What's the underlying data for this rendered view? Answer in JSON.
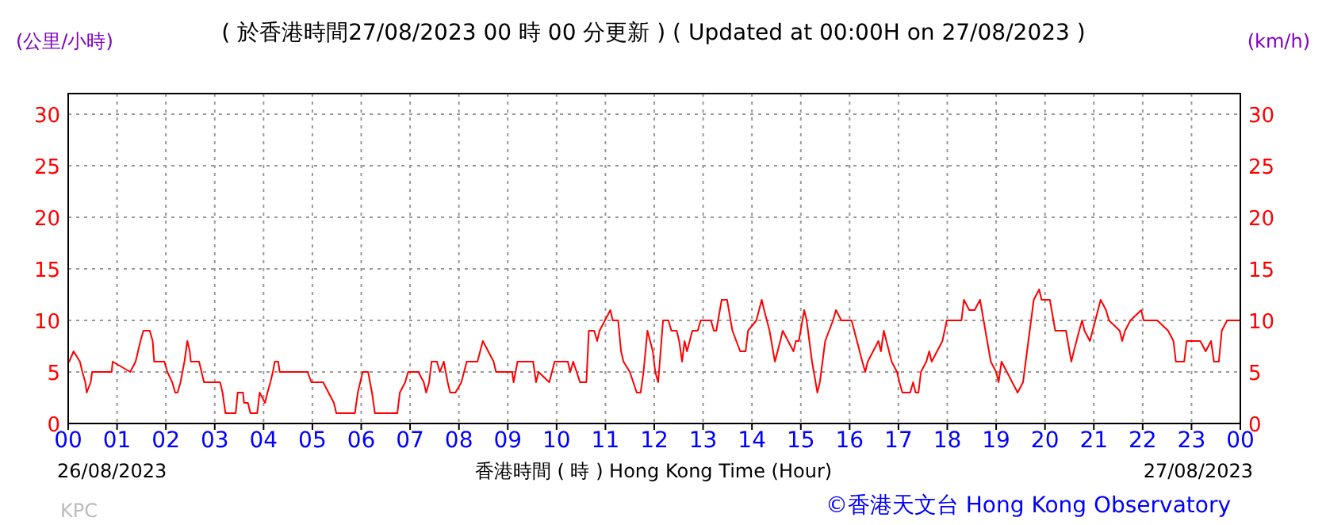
{
  "chart_data": {
    "type": "line",
    "title": "( 於香港時間27/08/2023 00 時 00 分更新 ) ( Updated at 00:00H on 27/08/2023 )",
    "ylabel": "(公里/小時)",
    "y2label": "(km/h)",
    "xlabel": "香港時間 ( 時 ) Hong Kong Time (Hour)",
    "annotations": [
      "26/08/2023",
      "27/08/2023",
      "KPC",
      "©香港天文台 Hong Kong Observatory"
    ],
    "xlim": [
      0,
      24
    ],
    "xticks": [
      {
        "value": 0,
        "label": "00"
      },
      {
        "value": 1,
        "label": "01"
      },
      {
        "value": 2,
        "label": "02"
      },
      {
        "value": 3,
        "label": "03"
      },
      {
        "value": 4,
        "label": "04"
      },
      {
        "value": 5,
        "label": "05"
      },
      {
        "value": 6,
        "label": "06"
      },
      {
        "value": 7,
        "label": "07"
      },
      {
        "value": 8,
        "label": "08"
      },
      {
        "value": 9,
        "label": "09"
      },
      {
        "value": 10,
        "label": "10"
      },
      {
        "value": 11,
        "label": "11"
      },
      {
        "value": 12,
        "label": "12"
      },
      {
        "value": 13,
        "label": "13"
      },
      {
        "value": 14,
        "label": "14"
      },
      {
        "value": 15,
        "label": "15"
      },
      {
        "value": 16,
        "label": "16"
      },
      {
        "value": 17,
        "label": "17"
      },
      {
        "value": 18,
        "label": "18"
      },
      {
        "value": 19,
        "label": "19"
      },
      {
        "value": 20,
        "label": "20"
      },
      {
        "value": 21,
        "label": "21"
      },
      {
        "value": 22,
        "label": "22"
      },
      {
        "value": 23,
        "label": "23"
      },
      {
        "value": 24,
        "label": "00"
      }
    ],
    "ylim": [
      0,
      32
    ],
    "yticks": [
      0,
      5,
      10,
      15,
      20,
      25,
      30
    ],
    "y2lim": [
      0,
      32
    ],
    "y2ticks": [
      0,
      5,
      10,
      15,
      20,
      25,
      30
    ],
    "grid": true,
    "series": [
      {
        "color": "#ff0000",
        "x": [
          0,
          0.02,
          0.11,
          0.24,
          0.29,
          0.35,
          0.38,
          0.46,
          0.49,
          0.89,
          0.91,
          1.27,
          1.38,
          1.48,
          1.54,
          1.67,
          1.73,
          1.76,
          1.97,
          2.03,
          2.13,
          2.19,
          2.24,
          2.3,
          2.38,
          2.44,
          2.49,
          2.51,
          2.68,
          2.73,
          2.78,
          3.11,
          3.16,
          3.22,
          3.43,
          3.47,
          3.58,
          3.6,
          3.68,
          3.73,
          3.87,
          3.92,
          4.03,
          4.08,
          4.14,
          4.19,
          4.23,
          4.3,
          4.33,
          4.84,
          4.9,
          4.98,
          5.22,
          5.33,
          5.44,
          5.49,
          5.87,
          5.93,
          5.98,
          6.03,
          6.14,
          6.22,
          6.28,
          6.74,
          6.79,
          6.9,
          6.96,
          7.17,
          7.28,
          7.33,
          7.39,
          7.44,
          7.55,
          7.61,
          7.69,
          7.77,
          7.82,
          7.93,
          8.05,
          8.16,
          8.38,
          8.49,
          8.6,
          8.71,
          8.76,
          9.09,
          9.12,
          9.2,
          9.52,
          9.58,
          9.63,
          9.85,
          9.96,
          10.23,
          10.28,
          10.34,
          10.48,
          10.61,
          10.66,
          10.77,
          10.83,
          10.88,
          10.99,
          11.1,
          11.15,
          11.26,
          11.32,
          11.37,
          11.5,
          11.64,
          11.72,
          11.78,
          11.86,
          11.97,
          12.02,
          12.08,
          12.13,
          12.18,
          12.29,
          12.35,
          12.46,
          12.51,
          12.57,
          12.62,
          12.67,
          12.78,
          12.89,
          12.95,
          13.16,
          13.22,
          13.27,
          13.38,
          13.49,
          13.6,
          13.76,
          13.87,
          13.92,
          14.09,
          14.2,
          14.25,
          14.36,
          14.47,
          14.58,
          14.63,
          14.74,
          14.85,
          14.9,
          14.96,
          15.07,
          15.12,
          15.23,
          15.34,
          15.39,
          15.5,
          15.66,
          15.72,
          15.83,
          16.04,
          16.15,
          16.26,
          16.32,
          16.37,
          16.48,
          16.59,
          16.64,
          16.7,
          16.86,
          16.97,
          17.02,
          17.08,
          17.24,
          17.3,
          17.35,
          17.41,
          17.46,
          17.57,
          17.63,
          17.68,
          17.79,
          17.9,
          17.99,
          18.29,
          18.34,
          18.45,
          18.56,
          18.67,
          18.78,
          18.89,
          19.0,
          19.05,
          19.11,
          19.22,
          19.33,
          19.44,
          19.55,
          19.66,
          19.77,
          19.88,
          19.93,
          20.1,
          20.21,
          20.43,
          20.54,
          20.59,
          20.7,
          20.76,
          20.81,
          20.92,
          21.03,
          21.14,
          21.25,
          21.31,
          21.53,
          21.58,
          21.64,
          21.75,
          21.97,
          22.02,
          22.3,
          22.52,
          22.63,
          22.68,
          22.85,
          22.9,
          23.18,
          23.29,
          23.4,
          23.46,
          23.56,
          23.62,
          23.73,
          23.95,
          24
        ],
        "values": [
          6,
          6,
          7,
          6,
          5,
          4,
          3,
          4,
          5,
          5,
          6,
          5,
          6,
          8,
          9,
          9,
          8,
          6,
          6,
          5,
          4,
          3,
          3,
          4,
          6,
          8,
          7,
          6,
          6,
          5,
          4,
          4,
          3,
          1,
          1,
          3,
          3,
          2,
          2,
          1,
          1,
          3,
          2,
          3,
          4,
          5,
          6,
          6,
          5,
          5,
          5,
          4,
          4,
          3,
          2,
          1,
          1,
          3,
          4,
          5,
          5,
          3,
          1,
          1,
          3,
          4,
          5,
          5,
          4,
          3,
          4,
          6,
          6,
          5,
          6,
          4,
          3,
          3,
          4,
          6,
          6,
          8,
          7,
          6,
          5,
          5,
          4,
          6,
          6,
          4,
          5,
          4,
          6,
          6,
          5,
          6,
          4,
          4,
          9,
          9,
          8,
          9,
          10,
          11,
          10,
          10,
          7,
          6,
          5,
          3,
          3,
          5,
          9,
          7,
          5,
          4,
          7,
          10,
          10,
          9,
          9,
          8,
          6,
          8,
          7,
          9,
          9,
          10,
          10,
          9,
          9,
          12,
          12,
          9,
          7,
          7,
          9,
          10,
          12,
          11,
          9,
          6,
          8,
          9,
          8,
          7,
          8,
          8,
          11,
          10,
          6,
          3,
          4,
          8,
          10,
          11,
          10,
          10,
          8,
          6,
          5,
          6,
          7,
          8,
          7,
          9,
          6,
          5,
          4,
          3,
          3,
          4,
          3,
          3,
          5,
          6,
          7,
          6,
          7,
          8,
          10,
          10,
          12,
          11,
          11,
          12,
          9,
          6,
          5,
          4,
          6,
          5,
          4,
          3,
          4,
          8,
          12,
          13,
          12,
          12,
          9,
          9,
          6,
          7,
          9,
          10,
          9,
          8,
          10,
          12,
          11,
          10,
          9,
          8,
          9,
          10,
          11,
          10,
          10,
          9,
          8,
          6,
          6,
          8,
          8,
          7,
          8,
          6,
          6,
          9,
          10,
          10,
          10
        ]
      }
    ]
  }
}
